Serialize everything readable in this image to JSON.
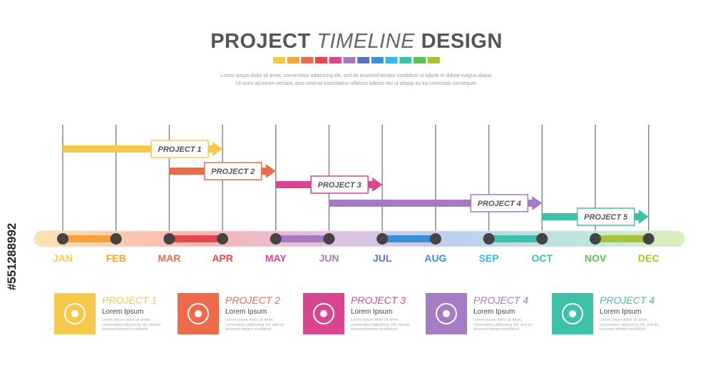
{
  "header": {
    "title_1": "PROJECT",
    "title_2": "TIMELINE",
    "title_3": "DESIGN",
    "lines": [
      "Lorem ipsum dolor sit amet, consectetur adipiscing elit, sed do eiusmod tempor incididunt ut labore et dolore magna aliqua.",
      "Ut enim ad minim veniam, quis nostrud exercitation ullamco laboris nisi ut aliquip ex ea commodo consequat."
    ]
  },
  "stock_id": "#551288992",
  "months": [
    "JAN",
    "FEB",
    "MAR",
    "APR",
    "MAY",
    "JUN",
    "JUL",
    "AUG",
    "SEP",
    "OCT",
    "NOV",
    "DEC"
  ],
  "projects": [
    {
      "label": "PROJECT 1"
    },
    {
      "label": "PROJECT 2"
    },
    {
      "label": "PROJECT 3"
    },
    {
      "label": "PROJECT 4"
    },
    {
      "label": "PROJECT 5"
    }
  ],
  "cards": [
    {
      "title": "PROJECT 1",
      "subtitle": "Lorem Ipsum",
      "text": "Lorem ipsum dolor sit amet, consectetur adipiscing elit, sed do eiusmod tempor incididunt"
    },
    {
      "title": "PROJECT 2",
      "subtitle": "Lorem Ipsum",
      "text": "Lorem ipsum dolor sit amet, consectetur adipiscing elit, sed do eiusmod tempor incididunt"
    },
    {
      "title": "PROJECT 3",
      "subtitle": "Lorem Ipsum",
      "text": "Lorem ipsum dolor sit amet, consectetur adipiscing elit, sed do eiusmod tempor incididunt"
    },
    {
      "title": "PROJECT 4",
      "subtitle": "Lorem Ipsum",
      "text": "Lorem ipsum dolor sit amet, consectetur adipiscing elit, sed do eiusmod tempor incididunt"
    },
    {
      "title": "PROJECT 4",
      "subtitle": "Lorem Ipsum",
      "text": "Lorem ipsum dolor sit amet, consectetur adipiscing elit, sed do eiusmod tempor incididunt"
    }
  ]
}
